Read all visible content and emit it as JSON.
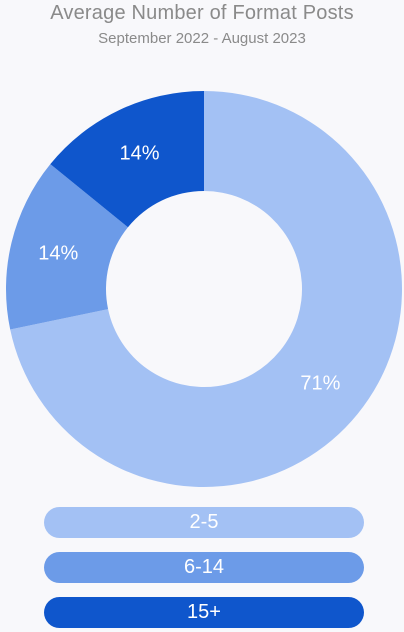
{
  "chart_data": {
    "type": "pie",
    "title": "Average Number of Format Posts",
    "subtitle": "September 2022 - August 2023",
    "slices": [
      {
        "label": "2-5",
        "value": 71,
        "display": "71%",
        "color": "#a3c1f4"
      },
      {
        "label": "6-14",
        "value": 14,
        "display": "14%",
        "color": "#6c9be8"
      },
      {
        "label": "15+",
        "value": 14,
        "display": "14%",
        "color": "#0f56cc"
      }
    ],
    "legend_position": "bottom",
    "donut": true
  }
}
